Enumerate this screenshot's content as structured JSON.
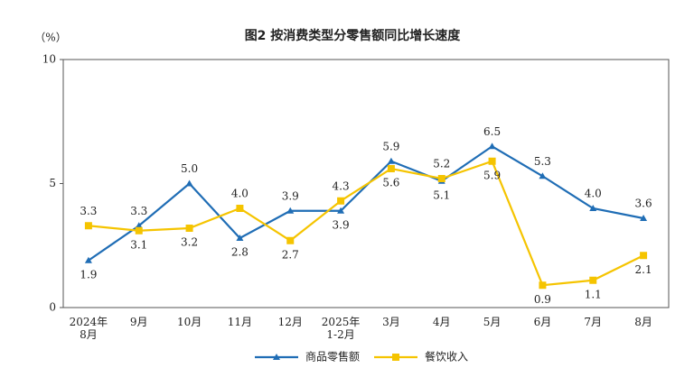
{
  "chart_data": {
    "type": "line",
    "title": "图2 按消费类型分零售额同比增长速度",
    "y_unit": "（%）",
    "categories": [
      "2024年\n8月",
      "9月",
      "10月",
      "11月",
      "12月",
      "2025年\n1-2月",
      "3月",
      "4月",
      "5月",
      "6月",
      "7月",
      "8月"
    ],
    "series": [
      {
        "name": "商品零售额",
        "color": "#1f6db5",
        "marker": "triangle",
        "values": [
          1.9,
          3.3,
          5.0,
          2.8,
          3.9,
          3.9,
          5.9,
          5.1,
          6.5,
          5.3,
          4.0,
          3.6
        ],
        "value_labels": [
          "1.9",
          "3.3",
          "5.0",
          "2.8",
          "3.9",
          "3.9",
          "5.9",
          "5.1",
          "6.5",
          "5.3",
          "4.0",
          "3.6"
        ]
      },
      {
        "name": "餐饮收入",
        "color": "#f5c400",
        "marker": "square",
        "values": [
          3.3,
          3.1,
          3.2,
          4.0,
          2.7,
          4.3,
          5.6,
          5.2,
          5.9,
          0.9,
          1.1,
          2.1
        ],
        "value_labels": [
          "3.3",
          "3.1",
          "3.2",
          "4.0",
          "2.7",
          "4.3",
          "5.6",
          "5.2",
          "5.9",
          "0.9",
          "1.1",
          "2.1"
        ]
      }
    ],
    "ylim": [
      0,
      10
    ],
    "yticks": [
      0,
      5,
      10
    ],
    "grid": false,
    "legend": "bottom"
  }
}
